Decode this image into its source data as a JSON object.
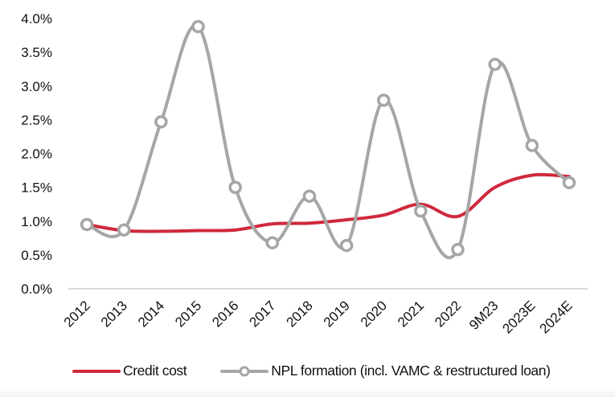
{
  "chart_data": {
    "type": "line",
    "title": "",
    "xlabel": "",
    "ylabel": "",
    "categories": [
      "2012",
      "2013",
      "2014",
      "2015",
      "2016",
      "2017",
      "2018",
      "2019",
      "2020",
      "2021",
      "2022",
      "9M23",
      "2023E",
      "2024E"
    ],
    "ylim": [
      0,
      4.0
    ],
    "yticks": [
      0,
      0.5,
      1.0,
      1.5,
      2.0,
      2.5,
      3.0,
      3.5,
      4.0
    ],
    "ytick_labels": [
      "0.0%",
      "0.5%",
      "1.0%",
      "1.5%",
      "2.0%",
      "2.5%",
      "3.0%",
      "3.5%",
      "4.0%"
    ],
    "grid": false,
    "legend_position": "bottom",
    "series": [
      {
        "name": "Credit cost",
        "color": "#d0283c",
        "markers": false,
        "values": [
          0.95,
          0.86,
          0.85,
          0.86,
          0.87,
          0.96,
          0.97,
          1.02,
          1.09,
          1.25,
          1.07,
          1.5,
          1.68,
          1.66
        ]
      },
      {
        "name": "NPL formation (incl. VAMC & restructured loan)",
        "color": "#a6a6a6",
        "markers": true,
        "values": [
          0.95,
          0.87,
          2.47,
          3.88,
          1.5,
          0.68,
          1.37,
          0.64,
          2.79,
          1.15,
          0.58,
          3.32,
          2.12,
          1.57
        ]
      }
    ]
  },
  "legend": {
    "credit_cost": "Credit cost",
    "npl_formation": "NPL formation (incl. VAMC & restructured loan)"
  }
}
